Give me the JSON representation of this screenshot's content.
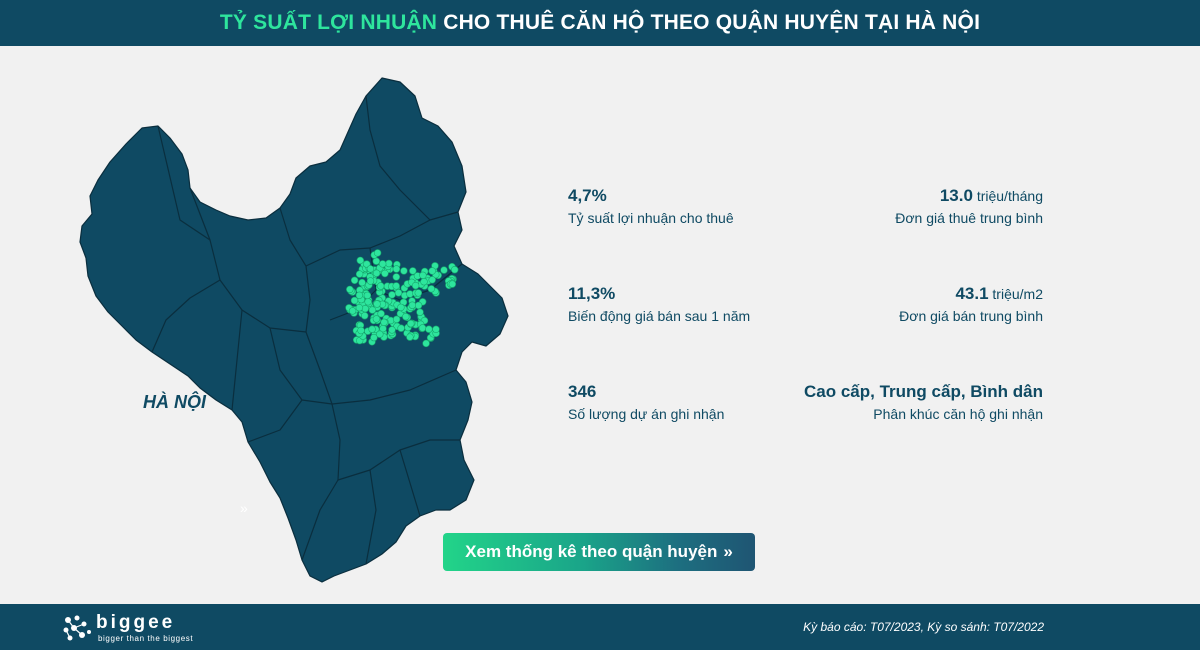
{
  "header": {
    "title_accent": "TỶ SUẤT LỢI NHUẬN",
    "title_rest": " CHO THUÊ CĂN HỘ THEO QUẬN HUYỆN TẠI HÀ NỘI"
  },
  "map": {
    "label": "HÀ NỘI",
    "chevron": "»",
    "fill_color": "#0f4a63",
    "border_color": "#0a2e3e",
    "dot_color": "#2ee59d"
  },
  "stats": [
    {
      "value": "4,7%",
      "unit": "",
      "label": "Tỷ suất lợi nhuận cho thuê"
    },
    {
      "value": "13.0",
      "unit": " triệu/tháng",
      "label": "Đơn giá thuê trung bình"
    },
    {
      "value": "11,3%",
      "unit": "",
      "label": "Biến động giá bán sau 1 năm"
    },
    {
      "value": "43.1",
      "unit": " triệu/m2",
      "label": "Đơn giá bán trung bình"
    },
    {
      "value": "346",
      "unit": "",
      "label": "Số lượng dự án ghi nhận"
    },
    {
      "value": "Cao cấp, Trung cấp, Bình dân",
      "unit": "",
      "label": "Phân khúc căn hộ ghi nhận"
    }
  ],
  "cta": {
    "label": "Xem thống kê theo quận huyện",
    "chevron": "»"
  },
  "footer": {
    "brand": "biggee",
    "tagline": "bigger than the biggest",
    "report_text": "Kỳ báo cáo: T07/2023, Kỳ so sánh: T07/2022"
  },
  "colors": {
    "primary": "#0f4a63",
    "accent": "#2ee59d",
    "background": "#f1f1f1"
  }
}
